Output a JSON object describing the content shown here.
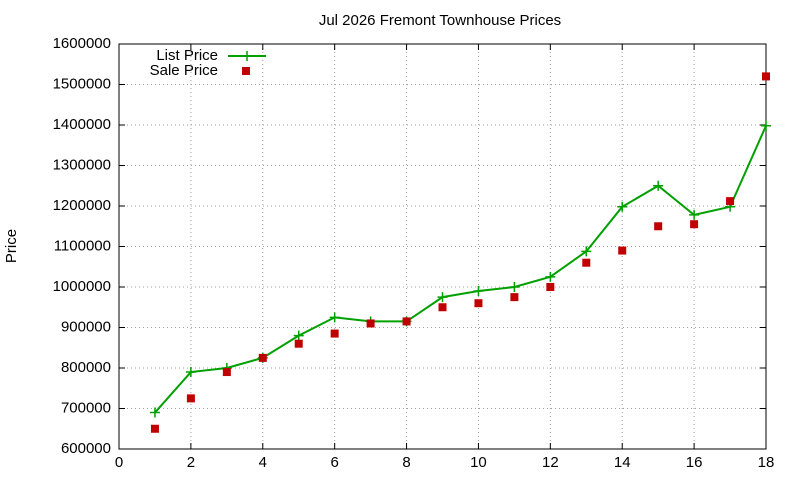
{
  "chart_data": {
    "type": "line",
    "title": "Jul 2026 Fremont Townhouse Prices",
    "ylabel": "Price",
    "x": [
      1,
      2,
      3,
      4,
      5,
      6,
      7,
      8,
      9,
      10,
      11,
      12,
      13,
      14,
      15,
      16,
      17,
      18
    ],
    "series": [
      {
        "name": "List Price",
        "color": "#00a000",
        "style": "linespoints",
        "values": [
          690000,
          790000,
          800000,
          825000,
          880000,
          925000,
          915000,
          915000,
          975000,
          990000,
          1000000,
          1025000,
          1088000,
          1198000,
          1250000,
          1178000,
          1198000,
          1398000
        ]
      },
      {
        "name": "Sale Price",
        "color": "#c00000",
        "style": "points",
        "values": [
          650000,
          725000,
          790000,
          825000,
          860000,
          885000,
          910000,
          915000,
          950000,
          960000,
          975000,
          1000000,
          1060000,
          1090000,
          1150000,
          1155000,
          1212000,
          1520000
        ]
      }
    ],
    "xlim": [
      0,
      18
    ],
    "xticks": [
      0,
      2,
      4,
      6,
      8,
      10,
      12,
      14,
      16,
      18
    ],
    "ylim": [
      600000,
      1600000
    ],
    "yticks": [
      600000,
      700000,
      800000,
      900000,
      1000000,
      1100000,
      1200000,
      1300000,
      1400000,
      1500000,
      1600000
    ],
    "grid": true,
    "legend": "top-left"
  }
}
